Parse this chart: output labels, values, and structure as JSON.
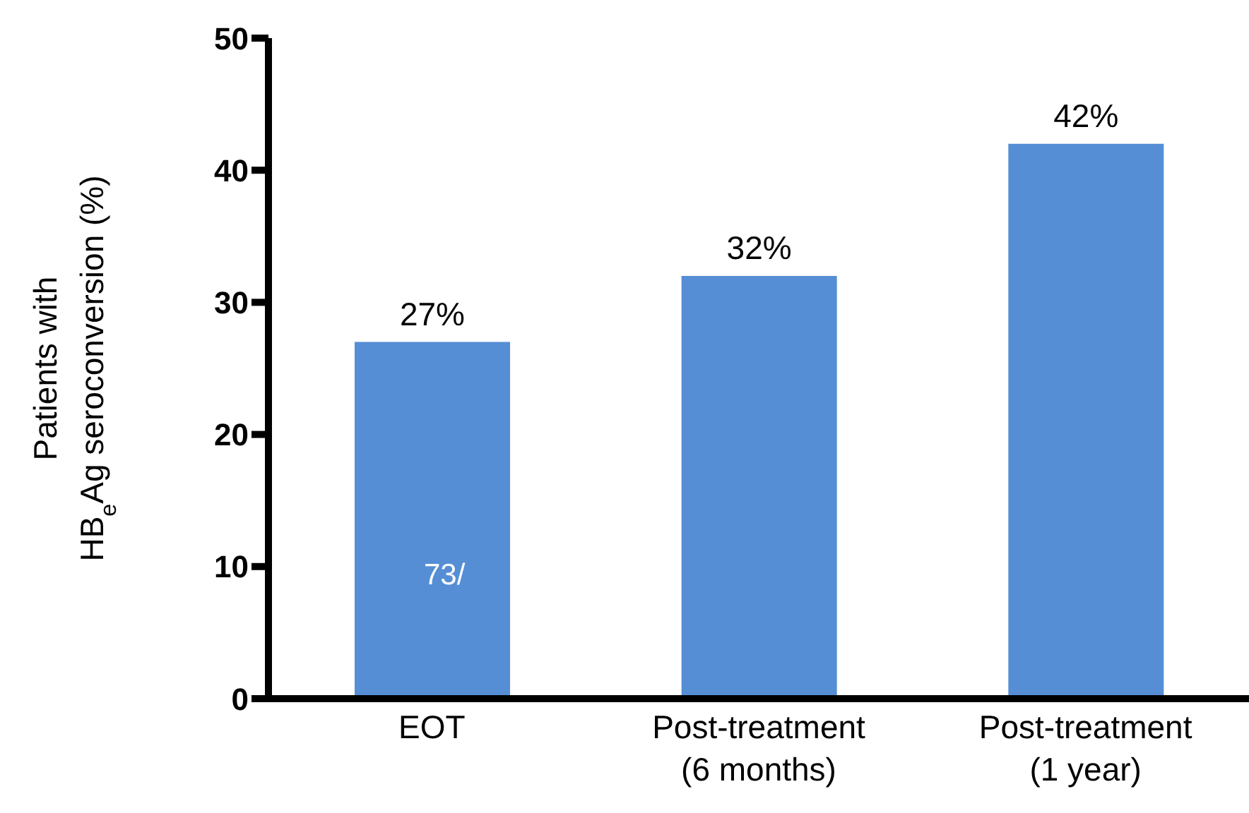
{
  "chart_data": {
    "type": "bar",
    "ylabel": "Patients with\nHB$_{e}$Ag seroconversion (%)",
    "categories": [
      "EOT",
      "Post-treatment\n(6 months)",
      "Post-treatment\n(1 year)"
    ],
    "values": [
      27,
      32,
      42
    ],
    "value_labels": [
      "27%",
      "32%",
      "42%"
    ],
    "color": "#558ed5",
    "ylim": [
      0,
      50
    ],
    "yticks": [
      0,
      10,
      20,
      30,
      40,
      50
    ],
    "grid": false,
    "legend": false,
    "annotations": [
      "73/"
    ]
  }
}
